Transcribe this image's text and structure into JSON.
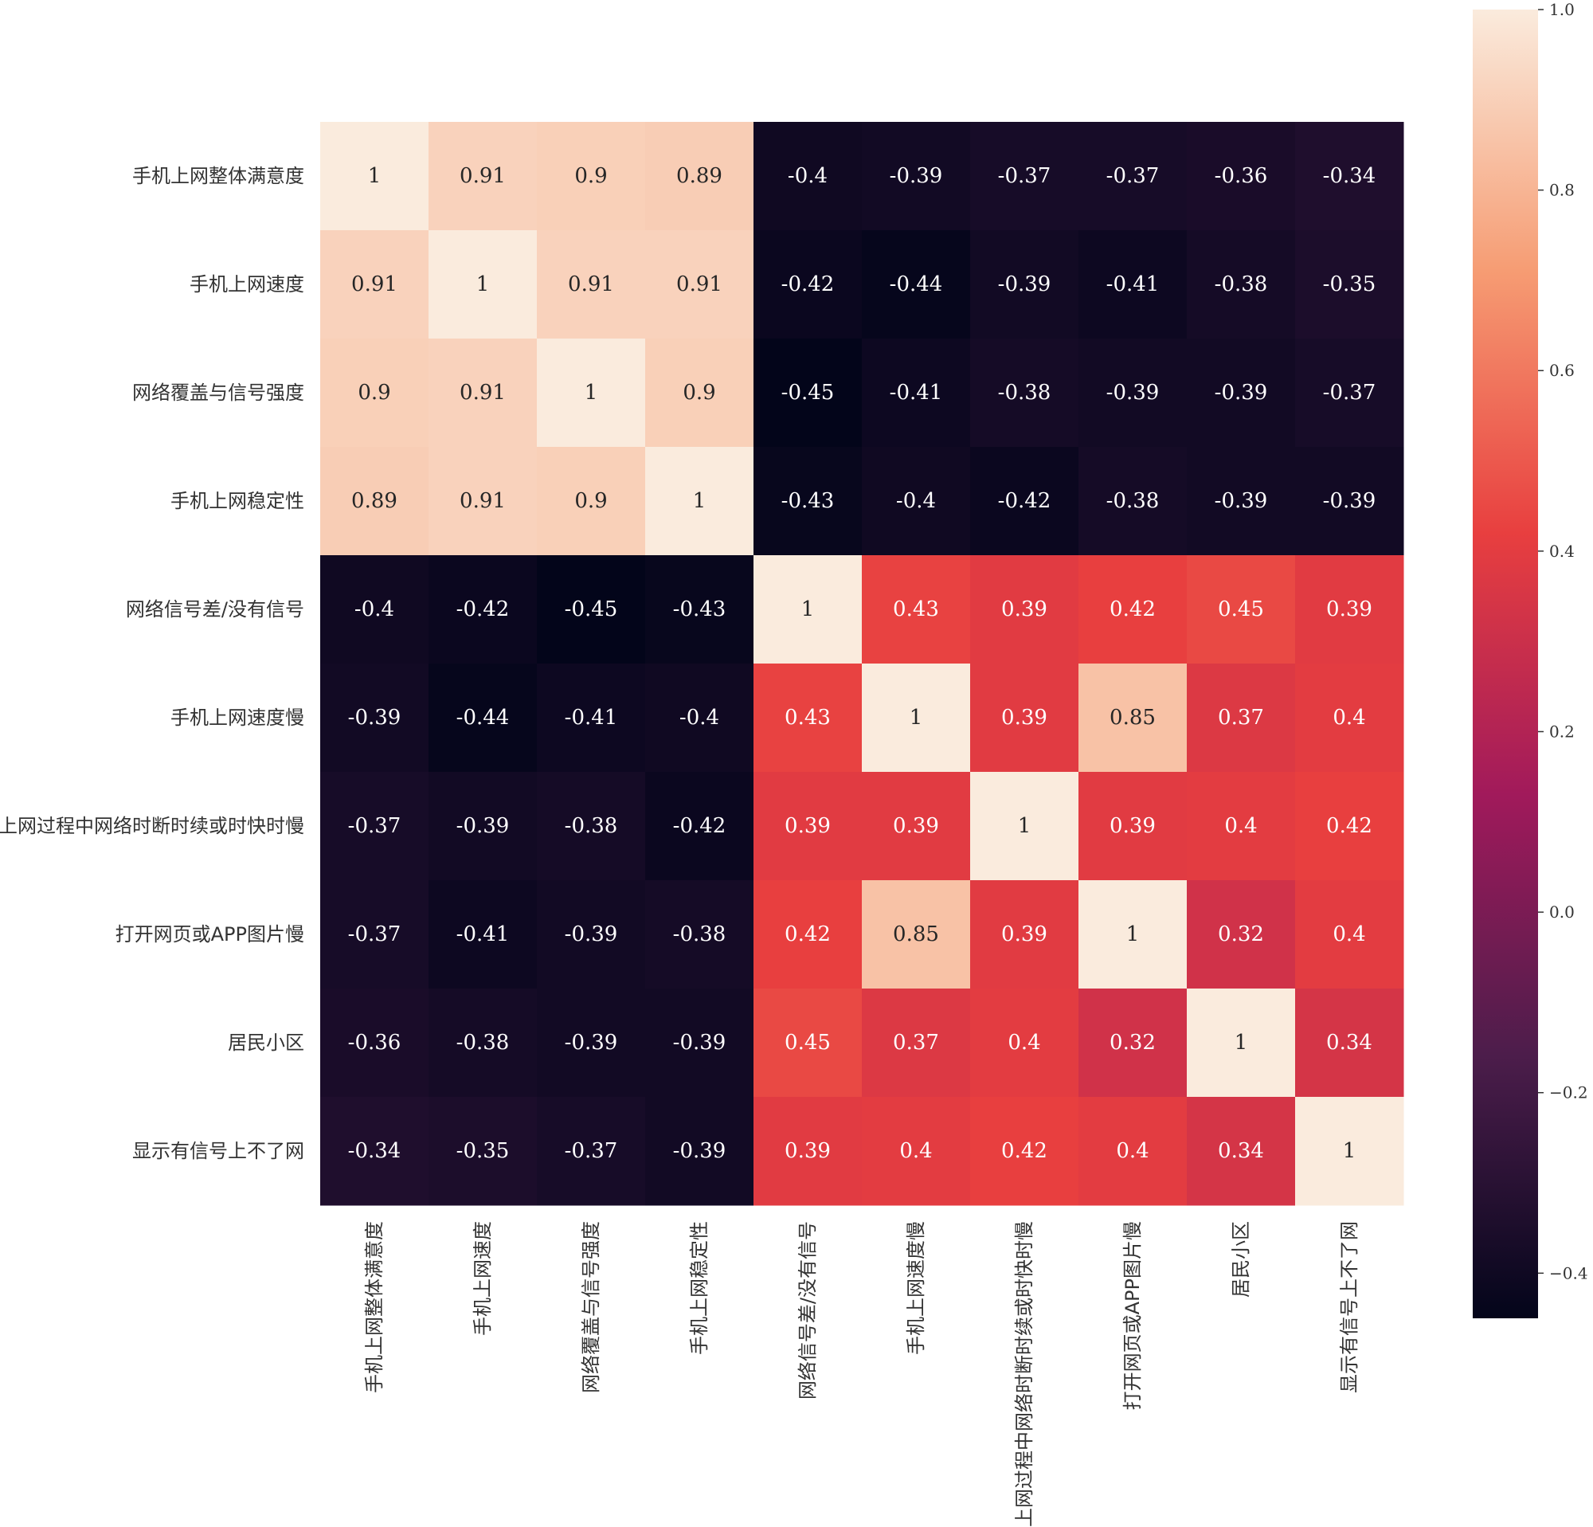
{
  "chart_data": {
    "type": "heatmap",
    "title": "",
    "xlabel": "",
    "ylabel": "",
    "labels": [
      "手机上网整体满意度",
      "手机上网速度",
      "网络覆盖与信号强度",
      "手机上网稳定性",
      "网络信号差/没有信号",
      "手机上网速度慢",
      "上网过程中网络时断时续或时快时慢",
      "打开网页或APP图片慢",
      "居民小区",
      "显示有信号上不了网"
    ],
    "matrix": [
      [
        1,
        0.91,
        0.9,
        0.89,
        -0.4,
        -0.39,
        -0.37,
        -0.37,
        -0.36,
        -0.34
      ],
      [
        0.91,
        1,
        0.91,
        0.91,
        -0.42,
        -0.44,
        -0.39,
        -0.41,
        -0.38,
        -0.35
      ],
      [
        0.9,
        0.91,
        1,
        0.9,
        -0.45,
        -0.41,
        -0.38,
        -0.39,
        -0.39,
        -0.37
      ],
      [
        0.89,
        0.91,
        0.9,
        1,
        -0.43,
        -0.4,
        -0.42,
        -0.38,
        -0.39,
        -0.39
      ],
      [
        -0.4,
        -0.42,
        -0.45,
        -0.43,
        1,
        0.43,
        0.39,
        0.42,
        0.45,
        0.39
      ],
      [
        -0.39,
        -0.44,
        -0.41,
        -0.4,
        0.43,
        1,
        0.39,
        0.85,
        0.37,
        0.4
      ],
      [
        -0.37,
        -0.39,
        -0.38,
        -0.42,
        0.39,
        0.39,
        1,
        0.39,
        0.4,
        0.42
      ],
      [
        -0.37,
        -0.41,
        -0.39,
        -0.38,
        0.42,
        0.85,
        0.39,
        1,
        0.32,
        0.4
      ],
      [
        -0.36,
        -0.38,
        -0.39,
        -0.39,
        0.45,
        0.37,
        0.4,
        0.32,
        1,
        0.34
      ],
      [
        -0.34,
        -0.35,
        -0.37,
        -0.39,
        0.39,
        0.4,
        0.42,
        0.4,
        0.34,
        1
      ]
    ],
    "colorbar": {
      "min": -0.45,
      "max": 1.0,
      "ticks": [
        1.0,
        0.8,
        0.6,
        0.4,
        0.2,
        0.0,
        -0.2,
        -0.4
      ],
      "tick_labels": [
        "1.0",
        "0.8",
        "0.6",
        "0.4",
        "0.2",
        "0.0",
        "−0.2",
        "−0.4"
      ]
    },
    "colormap": [
      "#03051a",
      "#4c1d4b",
      "#a11a5b",
      "#e83f3f",
      "#f69c73",
      "#faebdd"
    ]
  }
}
